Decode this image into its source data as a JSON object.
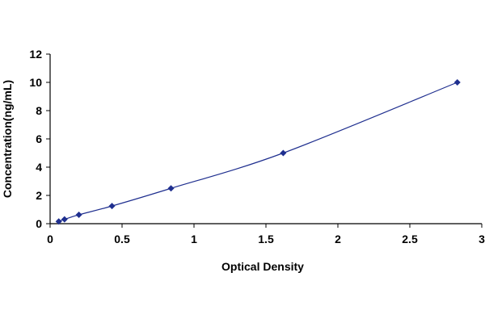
{
  "colors": {
    "line": "#1f2f8f",
    "marker": "#1f2f8f",
    "axis": "#000000",
    "background": "#ffffff"
  },
  "chart_data": {
    "type": "scatter",
    "xlabel": "Optical Density",
    "ylabel": "Concentration(ng/mL)",
    "xlim": [
      0,
      3
    ],
    "ylim": [
      0,
      12
    ],
    "x_ticks": [
      "0",
      "0.5",
      "1",
      "1.5",
      "2",
      "2.5",
      "3"
    ],
    "y_ticks": [
      "0",
      "2",
      "4",
      "6",
      "8",
      "10",
      "12"
    ],
    "grid": false,
    "legend": "none",
    "markers": "diamond",
    "fit_line": "smooth curve through points",
    "series": [
      {
        "x": [
          0.06,
          0.1,
          0.2,
          0.43,
          0.84,
          1.62,
          2.83
        ],
        "y": [
          0.16,
          0.31,
          0.63,
          1.25,
          2.5,
          5.0,
          10.0
        ]
      }
    ]
  }
}
